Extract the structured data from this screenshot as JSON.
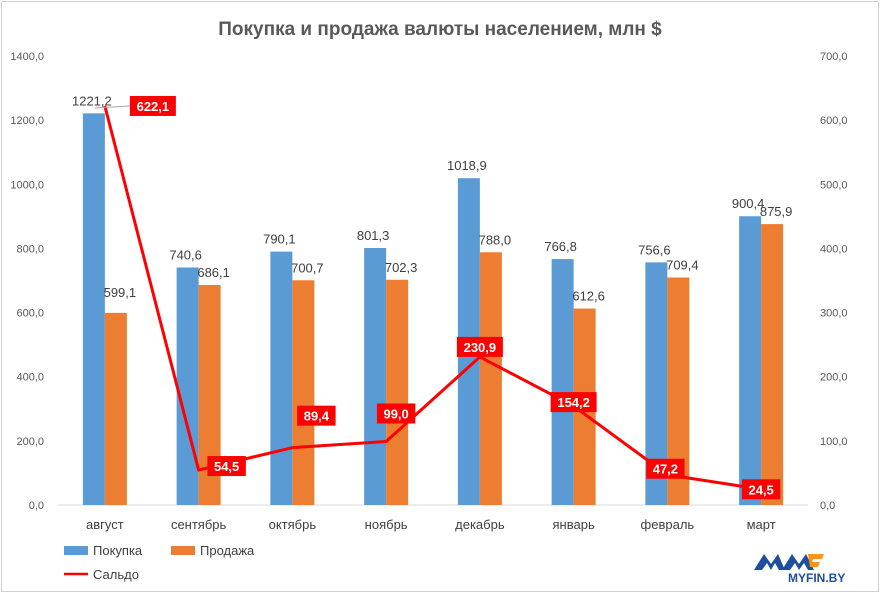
{
  "chart_data": {
    "type": "bar",
    "title": "Покупка и продажа валюты населением, млн $",
    "categories": [
      "август",
      "сентябрь",
      "октябрь",
      "ноябрь",
      "декабрь",
      "январь",
      "февраль",
      "март"
    ],
    "series": [
      {
        "name": "Покупка",
        "type": "bar",
        "axis": "left",
        "color": "#5b9bd5",
        "values": [
          1221.2,
          740.6,
          790.1,
          801.3,
          1018.9,
          766.8,
          756.6,
          900.4
        ],
        "labels": [
          "1221,2",
          "740,6",
          "790,1",
          "801,3",
          "1018,9",
          "766,8",
          "756,6",
          "900,4"
        ]
      },
      {
        "name": "Продажа",
        "type": "bar",
        "axis": "left",
        "color": "#ed7d31",
        "values": [
          599.1,
          686.1,
          700.7,
          702.3,
          788.0,
          612.6,
          709.4,
          875.9
        ],
        "labels": [
          "599,1",
          "686,1",
          "700,7",
          "702,3",
          "788,0",
          "612,6",
          "709,4",
          "875,9"
        ]
      },
      {
        "name": "Сальдо",
        "type": "line",
        "axis": "right",
        "color": "#ff0000",
        "values": [
          622.1,
          54.5,
          89.4,
          99.0,
          230.9,
          154.2,
          47.2,
          24.5
        ],
        "labels": [
          "622,1",
          "54,5",
          "89,4",
          "99,0",
          "230,9",
          "154,2",
          "47,2",
          "24,5"
        ]
      }
    ],
    "ylim_left": [
      0,
      1400
    ],
    "ylim_right": [
      0,
      700
    ],
    "left_ticks": [
      "0,0",
      "200,0",
      "400,0",
      "600,0",
      "800,0",
      "1000,0",
      "1200,0",
      "1400,0"
    ],
    "right_ticks": [
      "0,0",
      "100,0",
      "200,0",
      "300,0",
      "400,0",
      "500,0",
      "600,0",
      "700,0"
    ],
    "grid": false,
    "legend_position": "bottom-left"
  },
  "brand": {
    "text": "MYFIN.BY",
    "colors": {
      "blue": "#1f4e9e",
      "orange": "#f7941d"
    }
  }
}
